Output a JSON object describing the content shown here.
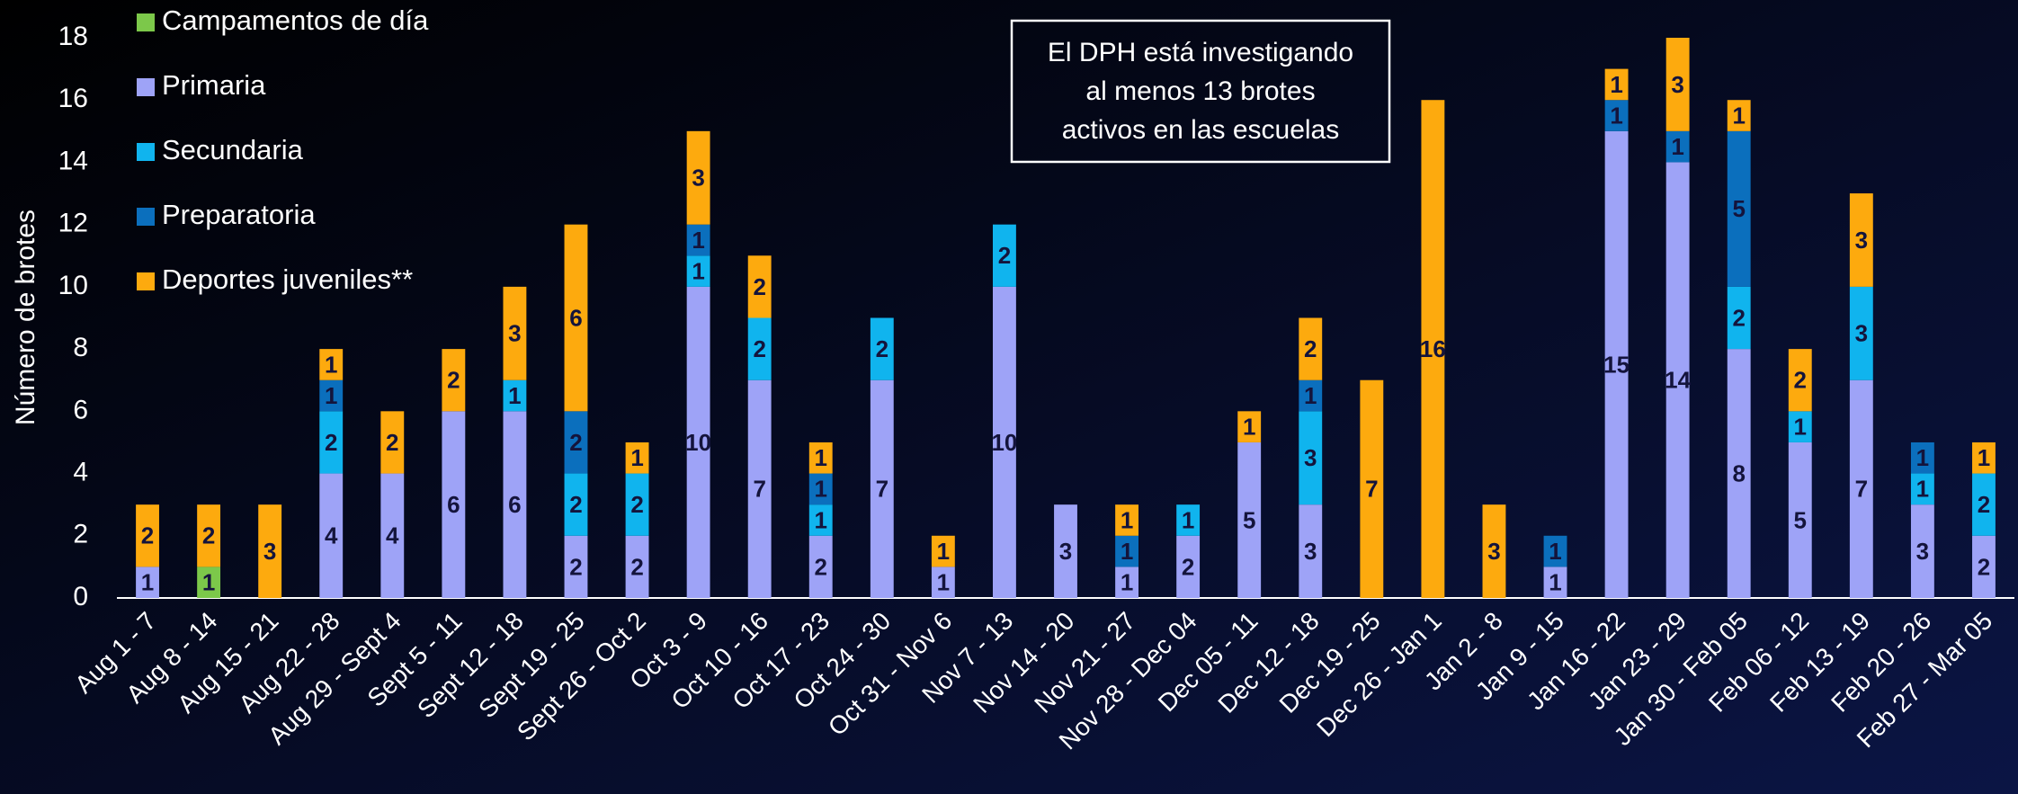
{
  "chart_data": {
    "type": "stacked-bar",
    "y_label": "Número de brotes",
    "annotation": [
      "El DPH está investigando",
      "al menos 13 brotes",
      "activos en las escuelas"
    ],
    "categories": [
      "Aug 1 - 7",
      "Aug 8 - 14",
      "Aug 15 - 21",
      "Aug 22 - 28",
      "Aug 29 - Sept 4",
      "Sept 5 - 11",
      "Sept 12 - 18",
      "Sept 19 - 25",
      "Sept 26 - Oct 2",
      "Oct 3 - 9",
      "Oct 10 - 16",
      "Oct 17 - 23",
      "Oct 24 - 30",
      "Oct 31 - Nov 6",
      "Nov 7 - 13",
      "Nov 14 - 20",
      "Nov 21 - 27",
      "Nov 28 - Dec 04",
      "Dec 05 - 11",
      "Dec 12 - 18",
      "Dec 19 - 25",
      "Dec 26 - Jan 1",
      "Jan 2 - 8",
      "Jan 9 - 15",
      "Jan 16 - 22",
      "Jan 23 - 29",
      "Jan 30 - Feb 05",
      "Feb 06 - 12",
      "Feb 13 - 19",
      "Feb 20 - 26",
      "Feb 27 - Mar 05"
    ],
    "series": [
      {
        "name": "Campamentos de día",
        "color": "#7cc84a",
        "values": [
          0,
          1,
          0,
          0,
          0,
          0,
          0,
          0,
          0,
          0,
          0,
          0,
          0,
          0,
          0,
          0,
          0,
          0,
          0,
          0,
          0,
          0,
          0,
          0,
          0,
          0,
          0,
          0,
          0,
          0,
          0
        ]
      },
      {
        "name": "Primaria",
        "color": "#9ea3f7",
        "values": [
          1,
          0,
          0,
          4,
          4,
          6,
          6,
          2,
          2,
          10,
          7,
          2,
          7,
          1,
          10,
          3,
          1,
          2,
          5,
          3,
          0,
          0,
          0,
          1,
          15,
          14,
          8,
          5,
          7,
          3,
          2
        ]
      },
      {
        "name": "Secundaria",
        "color": "#10b4ee",
        "values": [
          0,
          0,
          0,
          2,
          0,
          0,
          1,
          2,
          2,
          1,
          2,
          1,
          2,
          0,
          2,
          0,
          0,
          1,
          0,
          3,
          0,
          0,
          0,
          0,
          0,
          0,
          2,
          1,
          3,
          1,
          2
        ]
      },
      {
        "name": "Preparatoria",
        "color": "#0b6fbd",
        "values": [
          0,
          0,
          0,
          1,
          0,
          0,
          0,
          2,
          0,
          1,
          0,
          1,
          0,
          0,
          0,
          0,
          1,
          0,
          0,
          1,
          0,
          0,
          0,
          1,
          1,
          1,
          5,
          0,
          0,
          1,
          0
        ]
      },
      {
        "name": "Deportes juveniles**",
        "color": "#fdaa0e",
        "values": [
          2,
          2,
          3,
          1,
          2,
          2,
          3,
          6,
          1,
          3,
          2,
          1,
          0,
          1,
          0,
          0,
          1,
          0,
          1,
          2,
          7,
          16,
          3,
          0,
          1,
          3,
          1,
          2,
          3,
          0,
          1
        ]
      }
    ],
    "ylim": [
      0,
      18
    ],
    "yticks": [
      0,
      2,
      4,
      6,
      8,
      10,
      12,
      14,
      16,
      18
    ]
  }
}
